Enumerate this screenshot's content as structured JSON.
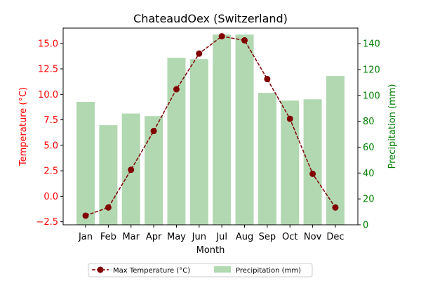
{
  "chart_data": {
    "type": "bar+line",
    "title": "ChateaudOex (Switzerland)",
    "xlabel": "Month",
    "categories": [
      "Jan",
      "Feb",
      "Mar",
      "Apr",
      "May",
      "Jun",
      "Jul",
      "Aug",
      "Sep",
      "Oct",
      "Nov",
      "Dec"
    ],
    "series": [
      {
        "name": "Max Temperature (°C)",
        "type": "line",
        "axis": "left",
        "values": [
          -1.9,
          -1.1,
          2.6,
          6.4,
          10.5,
          14.0,
          15.7,
          15.3,
          11.5,
          7.6,
          2.2,
          -1.1
        ],
        "color": "#800000"
      },
      {
        "name": "Precipitation (mm)",
        "type": "bar",
        "axis": "right",
        "values": [
          95,
          77,
          86,
          84,
          129,
          128,
          147,
          147,
          102,
          96,
          97,
          115
        ],
        "color": "#b2d8b2"
      }
    ],
    "y_left": {
      "label": "Temperature (°C)",
      "ylim": [
        -2.8,
        16.5
      ],
      "ticks": [
        -2.5,
        0.0,
        2.5,
        5.0,
        7.5,
        10.0,
        12.5,
        15.0
      ],
      "tick_labels": [
        "−2.5",
        "0.0",
        "2.5",
        "5.0",
        "7.5",
        "10.0",
        "12.5",
        "15.0"
      ],
      "color": "#ff0000"
    },
    "y_right": {
      "label": "Precipitation (mm)",
      "ylim": [
        0,
        152
      ],
      "ticks": [
        0,
        20,
        40,
        60,
        80,
        100,
        120,
        140
      ],
      "tick_labels": [
        "0",
        "20",
        "40",
        "60",
        "80",
        "100",
        "120",
        "140"
      ],
      "color": "#008000"
    },
    "grid": false,
    "legend_position": "bottom-center"
  }
}
